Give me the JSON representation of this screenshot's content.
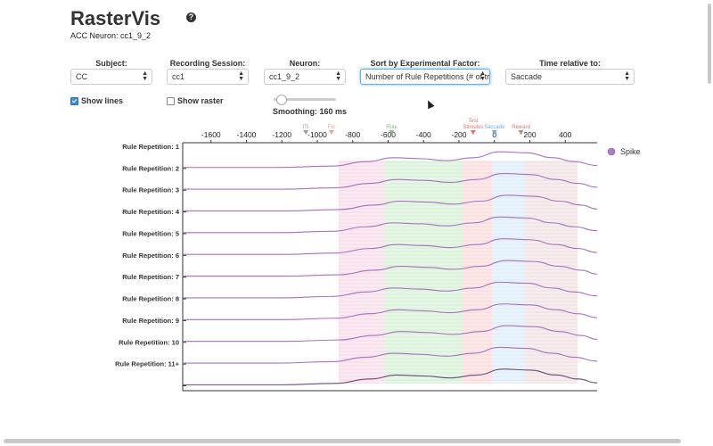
{
  "app": {
    "title": "RasterVis",
    "help_glyph": "?",
    "neuron_subtitle": "ACC Neuron: cc1_9_2"
  },
  "controls": {
    "subject": {
      "label": "Subject:",
      "value": "CC"
    },
    "session": {
      "label": "Recording Session:",
      "value": "cc1"
    },
    "neuron": {
      "label": "Neuron:",
      "value": "cc1_9_2"
    },
    "sort_by": {
      "label": "Sort by Experimental Factor:",
      "value": "Number of Rule Repetitions (# of trials)"
    },
    "time_relative": {
      "label": "Time relative to:",
      "value": "Saccade"
    }
  },
  "options": {
    "show_lines": {
      "label": "Show lines",
      "checked": true
    },
    "show_raster": {
      "label": "Show raster",
      "checked": false
    },
    "smoothing": {
      "label": "Smoothing: 160 ms",
      "fraction": 0.12
    }
  },
  "chart_data": {
    "type": "line",
    "x_tick_labels": [
      "-1600",
      "-1400",
      "-1200",
      "-1000",
      "-800",
      "-600",
      "-400",
      "-200",
      "0",
      "200",
      "400"
    ],
    "x_ticks": [
      -1600,
      -1400,
      -1200,
      -1000,
      -800,
      -600,
      -400,
      -200,
      0,
      200,
      400
    ],
    "xlim": [
      -1760,
      580
    ],
    "events": [
      {
        "label": "ITI",
        "x": -1065,
        "color": "#999999"
      },
      {
        "label": "Fix",
        "x": -920,
        "color": "#e8a0a0"
      },
      {
        "label": "Rule",
        "x": -580,
        "color": "#7cc47c"
      },
      {
        "label": "Test Stimulus",
        "x": -120,
        "color": "#e07070"
      },
      {
        "label": "Saccade",
        "x": 0,
        "color": "#6aaee0"
      },
      {
        "label": "Reward",
        "x": 150,
        "color": "#c08080"
      }
    ],
    "epochs": [
      {
        "from": -880,
        "to": -620,
        "color": "#f5d6e6"
      },
      {
        "from": -620,
        "to": -180,
        "color": "#cfeecf"
      },
      {
        "from": -180,
        "to": -10,
        "color": "#fbd6d6"
      },
      {
        "from": -10,
        "to": 170,
        "color": "#d6eaf8"
      },
      {
        "from": 170,
        "to": 470,
        "color": "#eedcdc"
      }
    ],
    "rows": [
      "Rule Repetition: 1",
      "Rule Repetition: 2",
      "Rule Repetition: 3",
      "Rule Repetition: 4",
      "Rule Repetition: 5",
      "Rule Repetition: 6",
      "Rule Repetition: 7",
      "Rule Repetition: 8",
      "Rule Repetition: 9",
      "Rule Repetition: 10",
      "Rule Repetition: 11+"
    ],
    "series_profile_x": [
      -1760,
      -1200,
      -900,
      -700,
      -550,
      -400,
      -250,
      -100,
      50,
      200,
      350,
      470,
      580
    ],
    "series_profile_y": [
      0.05,
      0.05,
      0.12,
      0.35,
      0.55,
      0.5,
      0.4,
      0.55,
      0.85,
      0.8,
      0.55,
      0.35,
      0.15
    ],
    "legend": [
      {
        "name": "Spike",
        "color": "#b07cc6"
      }
    ]
  }
}
